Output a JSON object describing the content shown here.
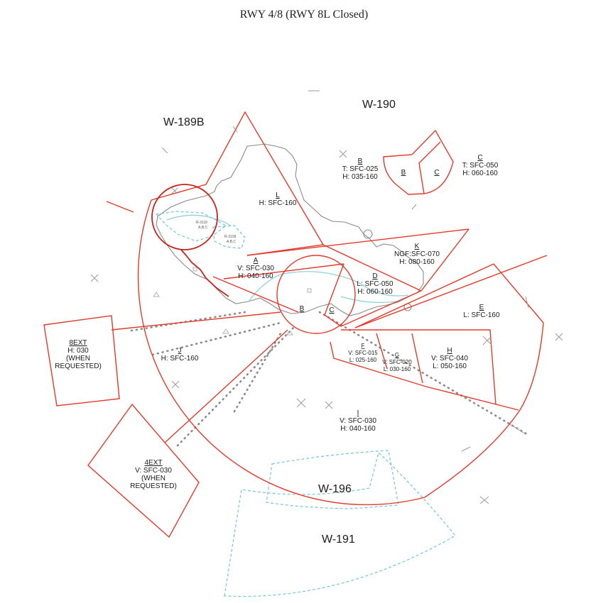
{
  "title": "RWY 4/8 (RWY 8L Closed)",
  "warning_areas": {
    "w189b": "W-189B",
    "w190": "W-190",
    "w196": "W-196",
    "w191": "W-191"
  },
  "restricted_areas": {
    "r3110_label": "R-3110",
    "r3110_sub": "A,B,C",
    "r3109_label": "R-3109",
    "r3109_sub": "A,B,C"
  },
  "sectors": [
    {
      "id": "B_north",
      "letter": "B",
      "line1": "T: SFC-025",
      "line2": "H: 035-160"
    },
    {
      "id": "C_north",
      "letter": "C",
      "line1": "T: SFC-050",
      "line2": "H: 060-160"
    },
    {
      "id": "B_north_box",
      "letter": "B"
    },
    {
      "id": "C_north_box",
      "letter": "C"
    },
    {
      "id": "L",
      "letter": "L",
      "line1": "H: SFC-160"
    },
    {
      "id": "K",
      "letter": "K",
      "line1": "NGF:SFC-070",
      "line2": "H: 080-160"
    },
    {
      "id": "A",
      "letter": "A",
      "line1": "V: SFC-030",
      "line2": "H: 040-160"
    },
    {
      "id": "D",
      "letter": "D",
      "line1": "L: SFC-050",
      "line2": "H: 060-160"
    },
    {
      "id": "E",
      "letter": "E",
      "line1": "L: SFC-160"
    },
    {
      "id": "B_inner",
      "letter": "B"
    },
    {
      "id": "C_inner",
      "letter": "C"
    },
    {
      "id": "F",
      "letter": "F",
      "line1": "V: SFC-015",
      "line2": "L: 025-160"
    },
    {
      "id": "G",
      "letter": "G",
      "line1": "V: SFC-020",
      "line2": "L: 030-160"
    },
    {
      "id": "H",
      "letter": "H",
      "line1": "V: SFC-040",
      "line2": "L: 050-160"
    },
    {
      "id": "J",
      "letter": "J",
      "line1": "H: SFC-160"
    },
    {
      "id": "I",
      "letter": "I",
      "line1": "V: SFC-030",
      "line2": "H: 040-160"
    },
    {
      "id": "8EXT",
      "letter": "8EXT",
      "line1": "H: 030",
      "line2": "(WHEN",
      "line3": "REQUESTED)"
    },
    {
      "id": "4EXT",
      "letter": "4EXT",
      "line1": "V: SFC-030",
      "line2": "(WHEN",
      "line3": "REQUESTED)"
    }
  ],
  "colors": {
    "sector_boundary": "#e23a2a",
    "restricted_boundary": "#c8231b",
    "warning_area_boundary": "#72c4d6",
    "coastline": "#8a8a8a",
    "waterway": "#8fd0e0"
  },
  "icons": {
    "navaid_marker": "x-mark-icon",
    "approach_path": "dotted-approach-line"
  }
}
